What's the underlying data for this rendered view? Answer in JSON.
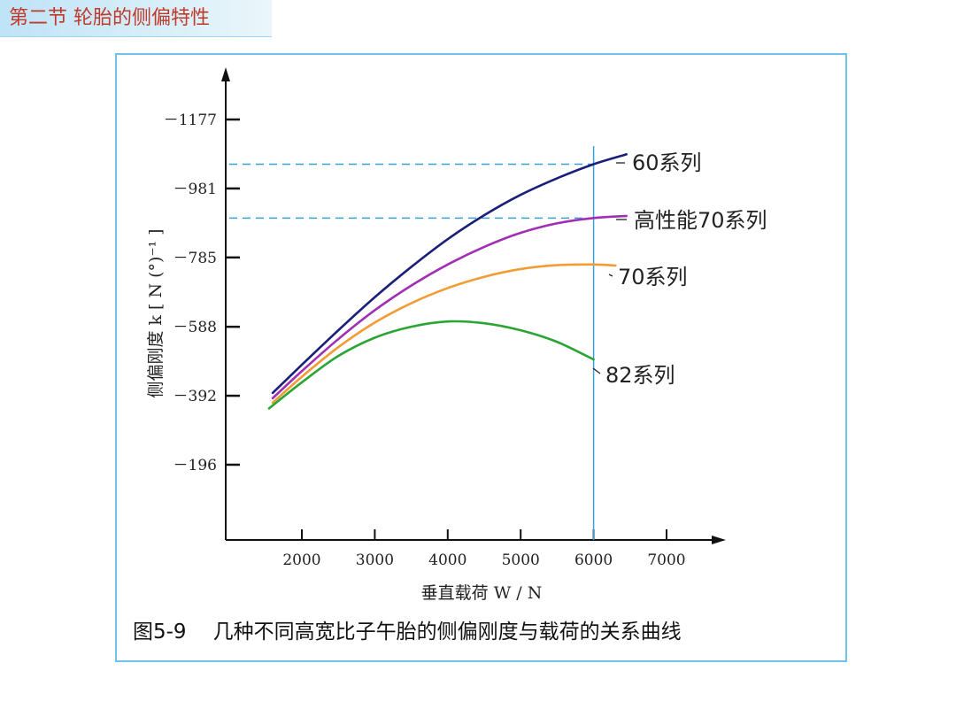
{
  "slide": {
    "section_title": "第二节  轮胎的侧偏特性"
  },
  "caption": {
    "figure_number": "图5-9",
    "text": "几种不同高宽比子午胎的侧偏刚度与载荷的关系曲线"
  },
  "colors": {
    "title_text": "#c0392b",
    "title_bg": "#c6e6f6",
    "frame_border": "#6ec3e8",
    "reference_line": "#3aa0d8"
  },
  "chart_data": {
    "type": "line",
    "xlabel": "垂直载荷 W / N",
    "ylabel": "侧偏刚度 k [ N (°)⁻¹ ]",
    "x_ticks": [
      2000,
      3000,
      4000,
      5000,
      6000,
      7000
    ],
    "y_ticks": [
      {
        "value": 196,
        "label": "－196"
      },
      {
        "value": 392,
        "label": "－392"
      },
      {
        "value": 588,
        "label": "－588"
      },
      {
        "value": 785,
        "label": "－785"
      },
      {
        "value": 981,
        "label": "－981"
      },
      {
        "value": 1177,
        "label": "－1177"
      }
    ],
    "xlim": [
      1000,
      7800
    ],
    "ylim": [
      0,
      1340
    ],
    "grid": false,
    "reference_lines": {
      "vertical_x": 6000,
      "horizontal_y": [
        1050,
        897
      ]
    },
    "series": [
      {
        "name": "60系列",
        "color": "#1a1f7a",
        "x": [
          1600,
          2000,
          2500,
          3000,
          3500,
          4000,
          4500,
          5000,
          5500,
          6000,
          6450
        ],
        "y": [
          400,
          480,
          578,
          672,
          758,
          837,
          905,
          963,
          1010,
          1050,
          1078
        ]
      },
      {
        "name": "高性能70系列",
        "color": "#a12fb4",
        "x": [
          1600,
          2000,
          2500,
          3000,
          3500,
          4000,
          4500,
          5000,
          5500,
          6000,
          6450
        ],
        "y": [
          385,
          462,
          553,
          635,
          705,
          765,
          815,
          855,
          882,
          897,
          903
        ]
      },
      {
        "name": "70系列",
        "color": "#f39c34",
        "x": [
          1600,
          2000,
          2500,
          3000,
          3500,
          4000,
          4500,
          5000,
          5500,
          6000,
          6300
        ],
        "y": [
          372,
          446,
          530,
          600,
          655,
          698,
          730,
          752,
          763,
          765,
          762
        ]
      },
      {
        "name": "82系列",
        "color": "#2aa534",
        "x": [
          1550,
          2000,
          2500,
          3000,
          3500,
          4000,
          4500,
          5000,
          5500,
          6000
        ],
        "y": [
          356,
          430,
          505,
          557,
          588,
          603,
          598,
          578,
          545,
          495
        ]
      }
    ]
  }
}
